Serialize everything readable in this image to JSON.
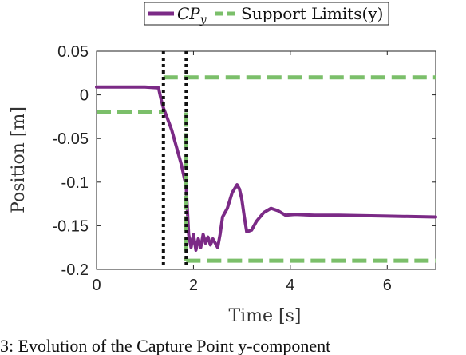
{
  "chart_data": {
    "type": "line",
    "title": "",
    "xlabel": "Time [s]",
    "ylabel": "Position [m]",
    "xlim": [
      0,
      7
    ],
    "ylim": [
      -0.2,
      0.05
    ],
    "xticks": [
      "0",
      "2",
      "4",
      "6"
    ],
    "xtick_values": [
      0,
      2,
      4,
      6
    ],
    "yticks": [
      "0.05",
      "0",
      "-0.05",
      "-0.1",
      "-0.15",
      "-0.2"
    ],
    "ytick_values": [
      0.05,
      0,
      -0.05,
      -0.1,
      -0.15,
      -0.2
    ],
    "grid": false,
    "legend_position": "top-center",
    "legend": {
      "cp_label_base": "CP",
      "cp_label_sub": "y",
      "support_label": "Support Limits(y)"
    },
    "series": [
      {
        "name": "CPy",
        "color": "#7b2a86",
        "style": "solid",
        "x": [
          0,
          0.5,
          1.0,
          1.28,
          1.33,
          1.38,
          1.45,
          1.55,
          1.65,
          1.75,
          1.85,
          1.9,
          1.95,
          2.0,
          2.05,
          2.1,
          2.15,
          2.2,
          2.25,
          2.3,
          2.35,
          2.4,
          2.45,
          2.5,
          2.55,
          2.6,
          2.7,
          2.8,
          2.9,
          2.95,
          3.0,
          3.05,
          3.1,
          3.2,
          3.3,
          3.45,
          3.6,
          3.75,
          3.9,
          4.1,
          4.5,
          5.0,
          6.0,
          7.0
        ],
        "y": [
          0.009,
          0.009,
          0.009,
          0.008,
          -0.005,
          -0.015,
          -0.025,
          -0.04,
          -0.06,
          -0.08,
          -0.105,
          -0.16,
          -0.175,
          -0.16,
          -0.178,
          -0.165,
          -0.175,
          -0.16,
          -0.17,
          -0.163,
          -0.172,
          -0.165,
          -0.17,
          -0.175,
          -0.16,
          -0.14,
          -0.13,
          -0.112,
          -0.103,
          -0.108,
          -0.12,
          -0.14,
          -0.157,
          -0.155,
          -0.145,
          -0.135,
          -0.13,
          -0.133,
          -0.138,
          -0.137,
          -0.138,
          -0.138,
          -0.139,
          -0.14
        ]
      },
      {
        "name": "Support Limits(y)",
        "color": "#7bbf6a",
        "style": "dashed",
        "segments": [
          {
            "x": [
              0,
              1.38
            ],
            "y": [
              -0.02,
              -0.02
            ]
          },
          {
            "x": [
              1.38,
              7
            ],
            "y": [
              0.02,
              0.02
            ]
          },
          {
            "x": [
              1.85,
              1.85
            ],
            "y": [
              -0.02,
              -0.19
            ]
          },
          {
            "x": [
              1.85,
              7
            ],
            "y": [
              -0.19,
              -0.19
            ]
          }
        ]
      }
    ],
    "vlines": [
      {
        "x": 1.38,
        "color": "#111111",
        "style": "dotted"
      },
      {
        "x": 1.85,
        "color": "#111111",
        "style": "dotted"
      }
    ]
  },
  "caption": "3: Evolution of the Capture Point y-component"
}
